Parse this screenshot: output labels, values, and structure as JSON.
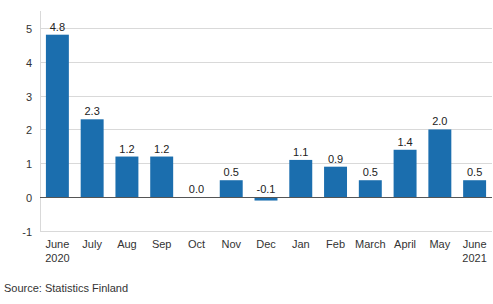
{
  "chart_data": {
    "type": "bar",
    "categories": [
      "June 2020",
      "July",
      "Aug",
      "Sep",
      "Oct",
      "Nov",
      "Dec",
      "Jan",
      "Feb",
      "March",
      "April",
      "May",
      "June 2021"
    ],
    "values": [
      4.8,
      2.3,
      1.2,
      1.2,
      0.0,
      0.5,
      -0.1,
      1.1,
      0.9,
      0.5,
      1.4,
      2.0,
      0.5
    ],
    "value_labels": [
      "4.8",
      "2.3",
      "1.2",
      "1.2",
      "0.0",
      "0.5",
      "-0.1",
      "1.1",
      "0.9",
      "0.5",
      "1.4",
      "2.0",
      "0.5"
    ],
    "color": "#1b6eae",
    "ylim": [
      -1,
      5.5
    ],
    "yticks": [
      -1,
      0,
      1,
      2,
      3,
      4,
      5
    ],
    "grid": true,
    "data_labels": true,
    "source": "Source: Statistics Finland"
  }
}
